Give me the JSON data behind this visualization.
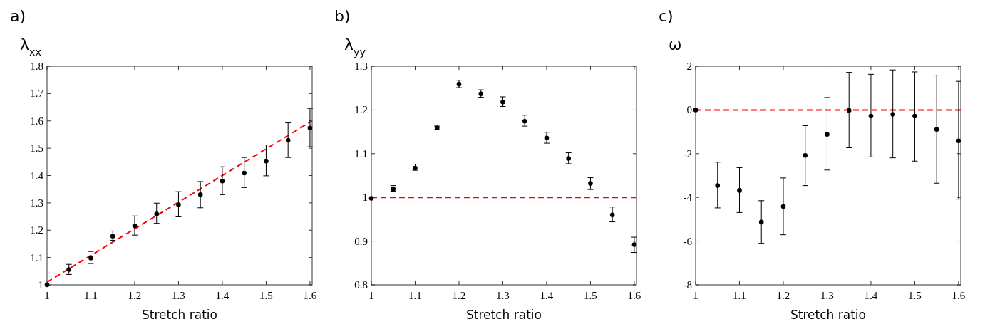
{
  "chart_data": [
    {
      "type": "scatter",
      "title": "a)",
      "ylabel": "λ$_{xx}$",
      "xlabel": "Stretch ratio",
      "x": [
        1,
        1.05,
        1.1,
        1.15,
        1.2,
        1.25,
        1.3,
        1.35,
        1.4,
        1.45,
        1.5,
        1.55,
        1.6
      ],
      "xlim": [
        1,
        1.605
      ],
      "xticks": [
        1,
        1.1,
        1.2,
        1.3,
        1.4,
        1.5,
        1.6
      ],
      "ylim": [
        1,
        1.8
      ],
      "yticks": [
        1,
        1.1,
        1.2,
        1.3,
        1.4,
        1.5,
        1.6,
        1.7,
        1.8
      ],
      "series": [
        {
          "color": "#000000",
          "marker": "circle",
          "values": [
            1.0,
            1.056,
            1.098,
            1.178,
            1.216,
            1.259,
            1.293,
            1.33,
            1.38,
            1.409,
            1.453,
            1.529,
            1.574
          ],
          "errors": [
            null,
            [
              1.038,
              1.075
            ],
            [
              1.078,
              1.122
            ],
            [
              1.163,
              1.197
            ],
            [
              1.182,
              1.252
            ],
            [
              1.225,
              1.299
            ],
            [
              1.249,
              1.341
            ],
            [
              1.282,
              1.378
            ],
            [
              1.33,
              1.432
            ],
            [
              1.356,
              1.466
            ],
            [
              1.399,
              1.512
            ],
            [
              1.466,
              1.593
            ],
            [
              1.505,
              1.646
            ]
          ]
        },
        {
          "type": "line",
          "color": "#ff0000",
          "line_style": "dashed",
          "x": [
            1,
            1.605
          ],
          "values": [
            1.01,
            1.6
          ]
        }
      ]
    },
    {
      "type": "scatter",
      "title": "b)",
      "ylabel": "λ$_{yy}$",
      "xlabel": "Stretch ratio",
      "x": [
        1,
        1.05,
        1.1,
        1.15,
        1.2,
        1.25,
        1.3,
        1.35,
        1.4,
        1.45,
        1.5,
        1.55,
        1.6
      ],
      "xlim": [
        1,
        1.605
      ],
      "xticks": [
        1,
        1.1,
        1.2,
        1.3,
        1.4,
        1.5,
        1.6
      ],
      "ylim": [
        0.8,
        1.3
      ],
      "yticks": [
        0.8,
        0.9,
        1,
        1.1,
        1.2,
        1.3
      ],
      "marker": "circle",
      "series": [
        {
          "color": "#000000",
          "values": [
            0.998,
            1.019,
            1.067,
            1.159,
            1.259,
            1.237,
            1.218,
            1.174,
            1.136,
            1.089,
            1.032,
            0.96,
            0.892
          ],
          "errors": [
            null,
            [
              1.014,
              1.027
            ],
            [
              1.062,
              1.076
            ],
            [
              1.155,
              1.163
            ],
            [
              1.251,
              1.268
            ],
            [
              1.229,
              1.246
            ],
            [
              1.208,
              1.23
            ],
            [
              1.163,
              1.188
            ],
            [
              1.124,
              1.149
            ],
            [
              1.077,
              1.102
            ],
            [
              1.018,
              1.045
            ],
            [
              0.944,
              0.978
            ],
            [
              0.874,
              0.909
            ]
          ]
        }
      ],
      "ref_lines": [
        {
          "axis": "y",
          "value": 1,
          "color": "#ff0000",
          "line_style": "dashed"
        }
      ]
    },
    {
      "type": "scatter",
      "title": "c)",
      "ylabel": "ω",
      "xlabel": "Stretch ratio",
      "x": [
        1,
        1.05,
        1.1,
        1.15,
        1.2,
        1.25,
        1.3,
        1.35,
        1.4,
        1.45,
        1.5,
        1.55,
        1.6
      ],
      "xlim": [
        1,
        1.605
      ],
      "xticks": [
        1,
        1.1,
        1.2,
        1.3,
        1.4,
        1.5,
        1.6
      ],
      "ylim": [
        -8,
        2
      ],
      "yticks": [
        -8,
        -6,
        -4,
        -2,
        0,
        2
      ],
      "marker": "circle",
      "series": [
        {
          "color": "#000000",
          "values": [
            0,
            -3.46,
            -3.68,
            -5.13,
            -4.42,
            -2.08,
            -1.12,
            -0.02,
            -0.28,
            -0.2,
            -0.28,
            -0.89,
            -1.41
          ],
          "errors": [
            null,
            [
              -4.48,
              -2.39
            ],
            [
              -4.69,
              -2.64
            ],
            [
              -6.1,
              -4.15
            ],
            [
              -5.71,
              -3.11
            ],
            [
              -3.46,
              -0.72
            ],
            [
              -2.75,
              0.57
            ],
            [
              -1.73,
              1.72
            ],
            [
              -2.15,
              1.63
            ],
            [
              -2.19,
              1.83
            ],
            [
              -2.34,
              1.74
            ],
            [
              -3.35,
              1.59
            ],
            [
              -4.08,
              1.31
            ]
          ]
        }
      ],
      "ref_lines": [
        {
          "axis": "y",
          "value": 0,
          "color": "#ff0000",
          "line_style": "dashed"
        }
      ]
    }
  ]
}
